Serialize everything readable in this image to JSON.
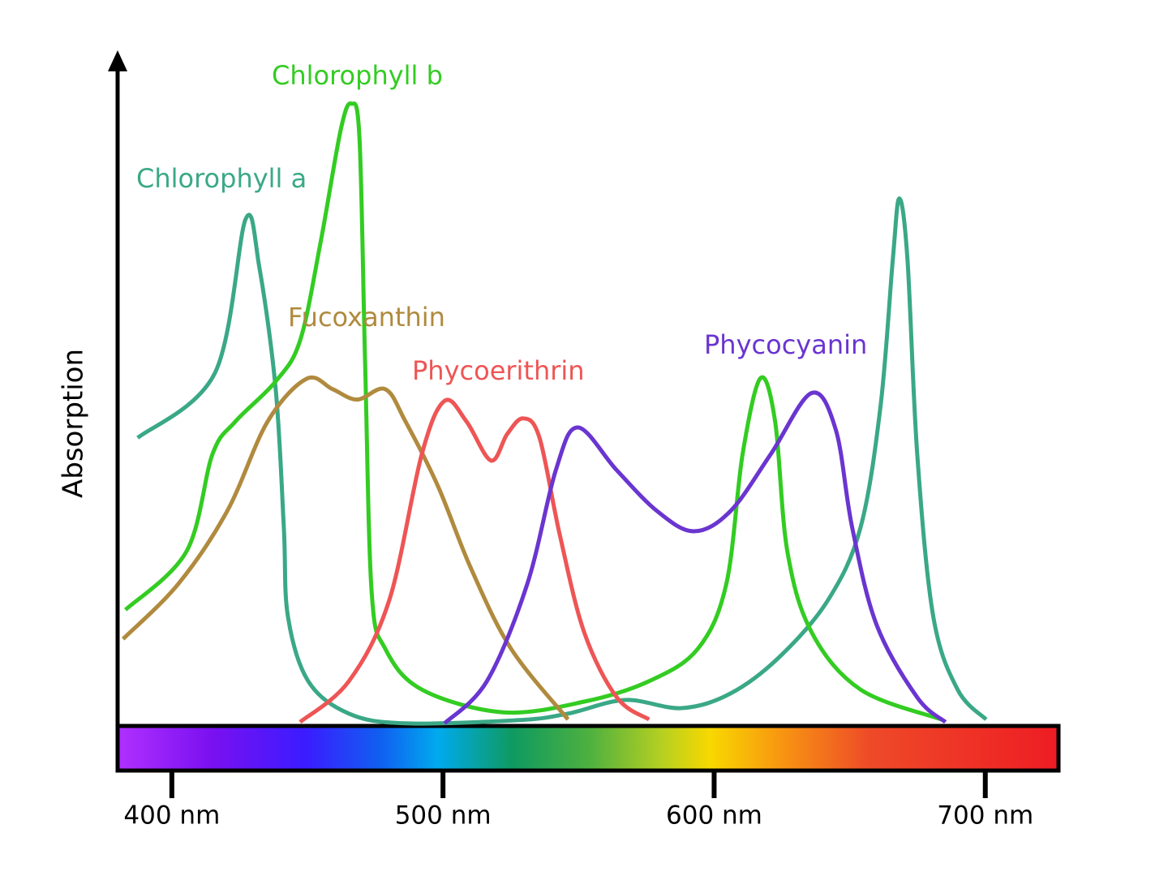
{
  "chart_data": {
    "type": "line",
    "y_label": "Absorption",
    "xlim": [
      380,
      727
    ],
    "ylim": [
      0,
      100
    ],
    "xticks": [
      {
        "value": 400,
        "label": "400 nm"
      },
      {
        "value": 500,
        "label": "500 nm"
      },
      {
        "value": 600,
        "label": "600 nm"
      },
      {
        "value": 700,
        "label": "700 nm"
      }
    ],
    "series": [
      {
        "name": "Chlorophyll a",
        "color": "#3aa886",
        "x": [
          387.4,
          415.9,
          427.2,
          432.3,
          438.3,
          441.3,
          442.8,
          450.3,
          465.3,
          486.2,
          528.1,
          546.1,
          567.1,
          588,
          606,
          624,
          642,
          654,
          661.4,
          665.9,
          668.3,
          671.3,
          674.9,
          680.8,
          689.8,
          700.3
        ],
        "values": [
          44.4,
          54.4,
          78.1,
          70.6,
          51.9,
          30.6,
          16.9,
          6.9,
          1.9,
          0.4,
          0.9,
          1.9,
          4,
          2.75,
          5,
          10.6,
          19.4,
          30.6,
          49.4,
          71.9,
          81.3,
          71.9,
          41.9,
          16.9,
          5.6,
          1
        ]
      },
      {
        "name": "Chlorophyll b",
        "color": "#33cc22",
        "x": [
          382.9,
          405.4,
          415,
          423.4,
          438.3,
          447.3,
          454.8,
          462.3,
          466.2,
          469.2,
          471.3,
          473.7,
          478.7,
          492.2,
          522.2,
          552.1,
          576,
          594,
          604.5,
          610.5,
          617.1,
          622.5,
          627,
          636,
          654,
          683.8
        ],
        "values": [
          17.9,
          26.9,
          41.9,
          46.9,
          53.1,
          59.4,
          74.4,
          91.9,
          95.9,
          90.6,
          55.6,
          20.6,
          11.9,
          5.6,
          2.1,
          3.75,
          6.9,
          11.9,
          21.9,
          41.9,
          53.6,
          46.9,
          26.9,
          14.4,
          5.6,
          1
        ]
      },
      {
        "name": "Fucoxanthin",
        "color": "#b08a3e",
        "x": [
          382,
          402.4,
          420.4,
          435.3,
          449.7,
          459.3,
          468.3,
          478.7,
          486.2,
          498.2,
          510.2,
          525.1,
          546.1
        ],
        "values": [
          13.4,
          21.9,
          33.1,
          46.9,
          53.5,
          51.9,
          50.3,
          51.9,
          46.9,
          36.9,
          24.4,
          11.9,
          1
        ]
      },
      {
        "name": "Phycoerithrin",
        "color": "#ee5555",
        "x": [
          447.3,
          465.3,
          480.2,
          492.2,
          500.6,
          508.7,
          517.7,
          523.7,
          529.6,
          535.6,
          543.1,
          552.1,
          564.1,
          576
        ],
        "values": [
          0.6,
          6.9,
          19.4,
          41.9,
          50.1,
          46.9,
          40.9,
          45,
          47.4,
          44.4,
          29.4,
          14.4,
          4.4,
          1
        ]
      },
      {
        "name": "Phycocyanin",
        "color": "#6a35d0",
        "x": [
          500.6,
          516.2,
          531.1,
          541.6,
          549.7,
          564.1,
          579,
          592.5,
          606,
          620.9,
          635.9,
          644.9,
          650.9,
          659.9,
          674.9,
          685.3
        ],
        "values": [
          0.4,
          6.9,
          21.9,
          39.4,
          46,
          39.4,
          33.1,
          30,
          33.1,
          41.9,
          51.3,
          45.6,
          30.6,
          15.6,
          4.4,
          0.6
        ]
      }
    ]
  }
}
